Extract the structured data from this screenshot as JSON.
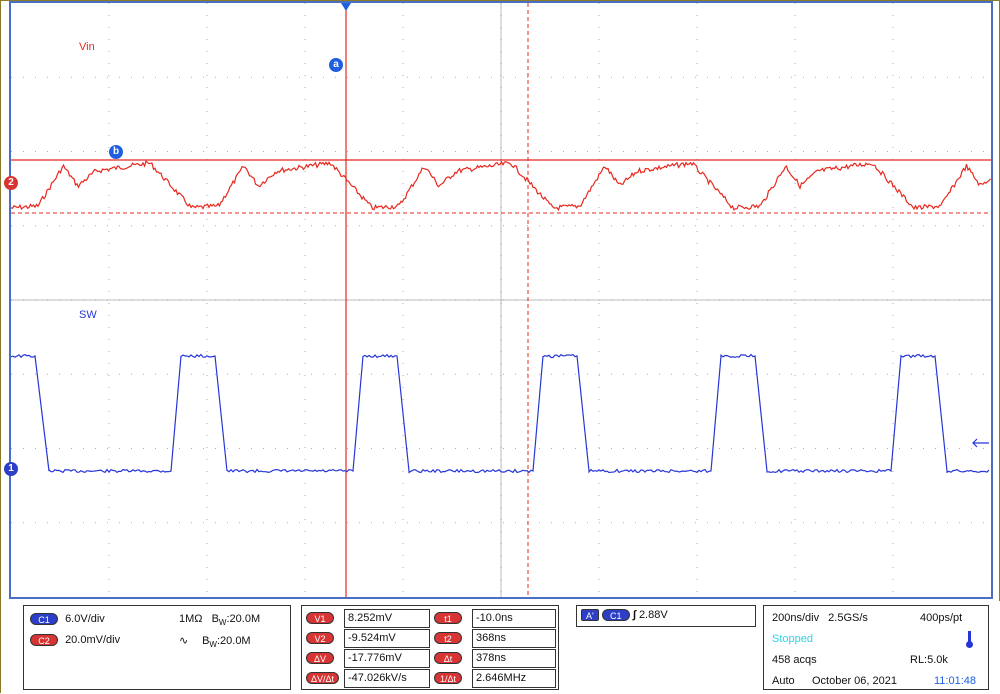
{
  "waveforms": {
    "vin_label": "Vin",
    "sw_label": "SW",
    "cursor_a": "a",
    "cursor_b": "b",
    "ch2_marker": "2",
    "ch1_marker": "1",
    "colors": {
      "vin": "#e8281e",
      "sw": "#2636d6",
      "grid": "#7a7a7a",
      "cursor_blue": "#1f5fe0"
    }
  },
  "channels": {
    "c1": {
      "tag": "C1",
      "scale": "6.0V/div",
      "impedance": "1MΩ",
      "bw_label": "B",
      "bw_sub": "W",
      "bw_value": ":20.0M"
    },
    "c2": {
      "tag": "C2",
      "scale": "20.0mV/div",
      "coupling_icon": "ac-coupling-icon",
      "bw_label": "B",
      "bw_sub": "W",
      "bw_value": ":20.0M"
    }
  },
  "measurements": {
    "v1": {
      "tag": "V1",
      "value": "8.252mV"
    },
    "v2": {
      "tag": "V2",
      "value": "-9.524mV"
    },
    "dv": {
      "tag": "ΔV",
      "value": "-17.776mV"
    },
    "dvdt": {
      "tag": "ΔV/Δt",
      "value": "-47.026kV/s"
    },
    "t1": {
      "tag": "t1",
      "value": "-10.0ns"
    },
    "t2": {
      "tag": "t2",
      "value": "368ns"
    },
    "dt": {
      "tag": "Δt",
      "value": "378ns"
    },
    "inv_dt": {
      "tag": "1/Δt",
      "value": "2.646MHz"
    }
  },
  "trigger": {
    "tag_a": "A'",
    "tag_c": "C1",
    "slope_icon": "rising-edge-icon",
    "level": "2.88V"
  },
  "acquisition": {
    "timebase": "200ns/div",
    "sample_rate": "2.5GS/s",
    "resolution": "400ps/pt",
    "status": "Stopped",
    "acqs": "458 acqs",
    "record_length": "RL:5.0k",
    "mode": "Auto",
    "date": "October 06, 2021",
    "time": "11:01:48"
  }
}
